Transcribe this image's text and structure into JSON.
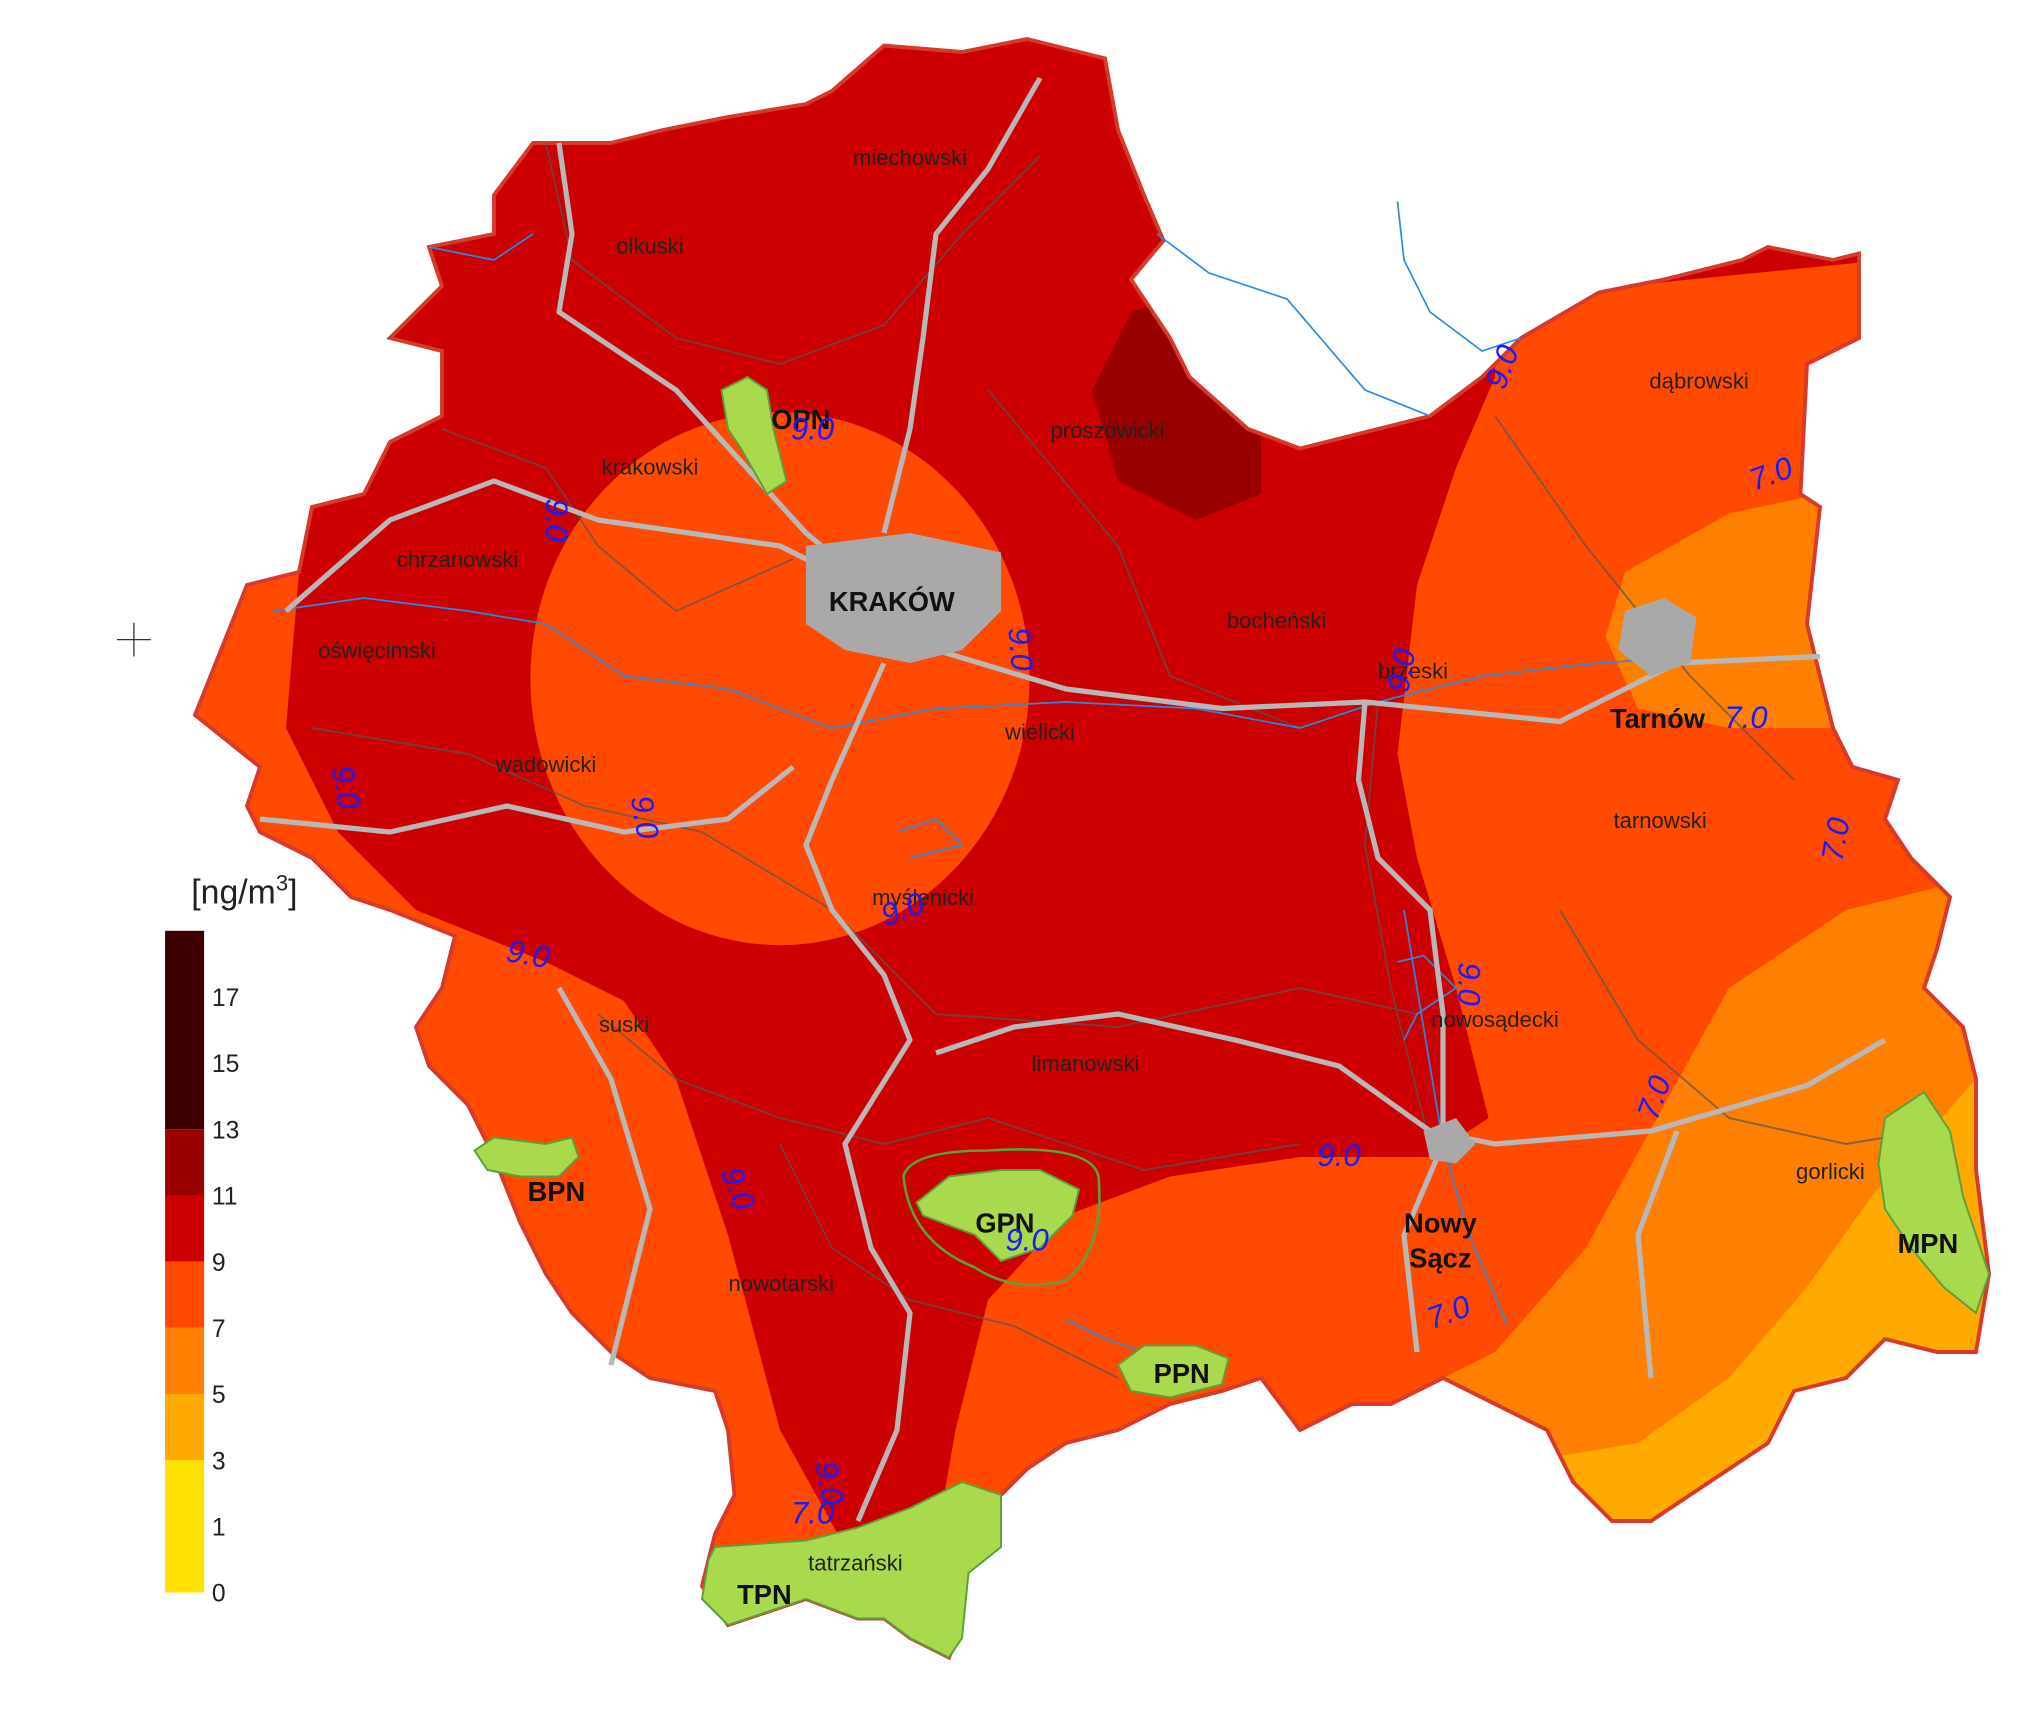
{
  "legend": {
    "unit_base": "[ng/m",
    "unit_exp": "3",
    "unit_close": "]",
    "ticks": [
      0,
      1,
      3,
      5,
      7,
      9,
      11,
      13,
      15,
      17
    ],
    "colors": [
      "#ffe000",
      "#ffaa00",
      "#ff8000",
      "#ff4a00",
      "#cc0000",
      "#990000",
      "#3c0000"
    ]
  },
  "districts": [
    "miechowski",
    "olkuski",
    "proszowicki",
    "krakowski",
    "chrzanowski",
    "oświęcimski",
    "bocheński",
    "brzeski",
    "wielicki",
    "wadowicki",
    "myślenicki",
    "dąbrowski",
    "tarnowski",
    "nowosądecki",
    "limanowski",
    "suski",
    "gorlicki",
    "nowotarski",
    "tatrzański"
  ],
  "cities": [
    "KRAKÓW",
    "Tarnów",
    "Nowy",
    "Sącz"
  ],
  "parks": [
    "OPN",
    "BPN",
    "GPN",
    "PPN",
    "TPN",
    "MPN"
  ],
  "contour_labels": [
    "9.0",
    "9.0",
    "9.0",
    "9.0",
    "9.0",
    "7.0",
    "7.0",
    "7.0",
    "9.0",
    "9.0",
    "9.0",
    "9.0",
    "9.0",
    "7.0",
    "9.0",
    "9.0",
    "7.0",
    "9.0",
    "9.0",
    "7.0"
  ]
}
